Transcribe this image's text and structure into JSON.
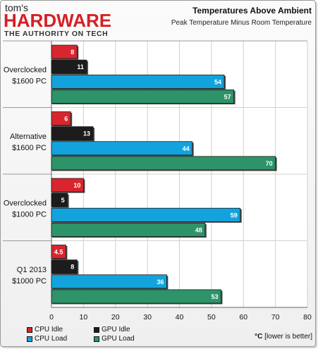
{
  "header": {
    "logo_top": "tom's",
    "logo_main": "HARDWARE",
    "logo_tagline": "THE AUTHORITY ON TECH",
    "title": "Temperatures Above Ambient",
    "subtitle": "Peak Temperature Minus Room Temperature"
  },
  "footnote": {
    "unit": "°C",
    "text": " [lower is better]"
  },
  "chart_data": {
    "type": "bar",
    "orientation": "horizontal",
    "title": "Temperatures Above Ambient",
    "subtitle": "Peak Temperature Minus Room Temperature",
    "categories": [
      [
        "Overclocked",
        "$1600 PC"
      ],
      [
        "Alternative",
        "$1600 PC"
      ],
      [
        "Overclocked",
        "$1000 PC"
      ],
      [
        "Q1 2013",
        "$1000 PC"
      ]
    ],
    "series": [
      {
        "name": "CPU Idle",
        "color": "#d9262e",
        "values": [
          8,
          6,
          10,
          4.5
        ]
      },
      {
        "name": "GPU Idle",
        "color": "#1c1c1c",
        "values": [
          11,
          13,
          5,
          8
        ]
      },
      {
        "name": "CPU Load",
        "color": "#12a3dc",
        "values": [
          54,
          44,
          59,
          36
        ]
      },
      {
        "name": "GPU Load",
        "color": "#2e9368",
        "values": [
          57,
          70,
          48,
          53
        ]
      }
    ],
    "xlim": [
      0,
      80
    ],
    "xticks": [
      0,
      10,
      20,
      30,
      40,
      50,
      60,
      70,
      80
    ],
    "xlabel": "°C [lower is better]",
    "grid": true,
    "legend_position": "bottom-left"
  }
}
